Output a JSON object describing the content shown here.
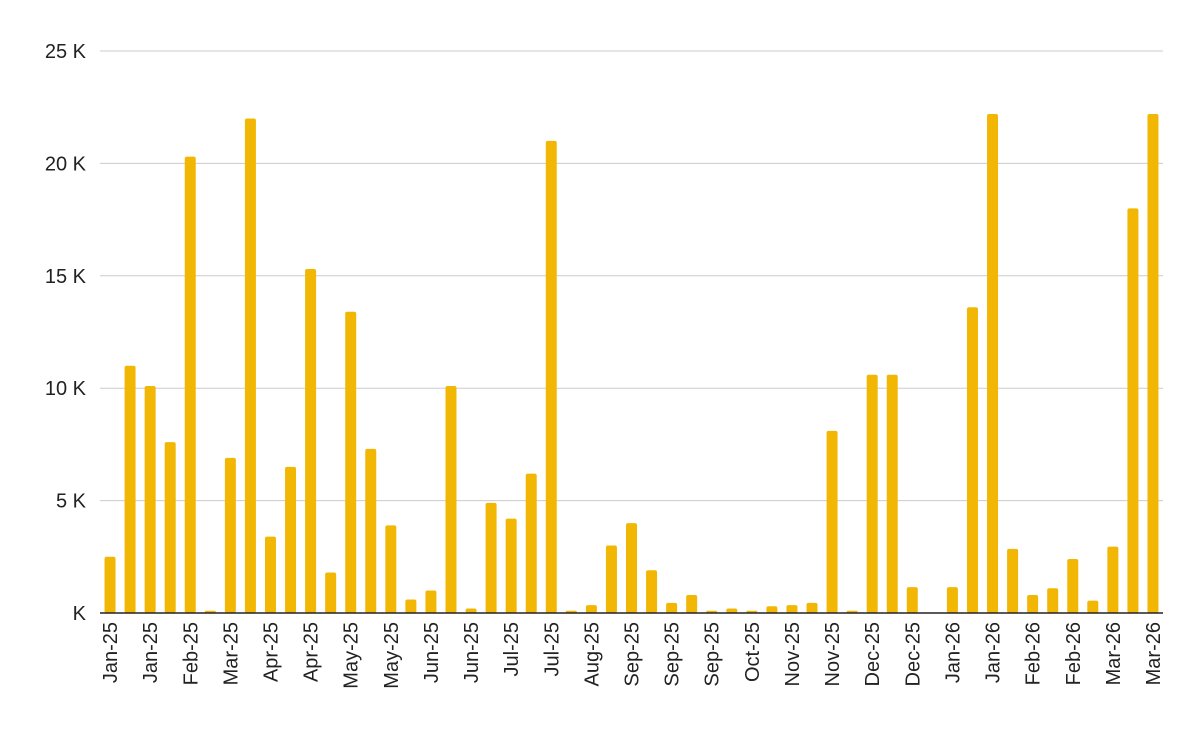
{
  "chart_data": {
    "type": "bar",
    "title": "",
    "xlabel": "",
    "ylabel": "",
    "ylim": [
      0,
      25000
    ],
    "yticks": [
      0,
      5000,
      10000,
      15000,
      20000,
      25000
    ],
    "ytick_labels": [
      "K",
      "5 K",
      "10 K",
      "15 K",
      "20 K",
      "25 K"
    ],
    "grid": true,
    "legend": "none",
    "bar_color": "#F2B705",
    "grid_color": "#cccccc",
    "axis_color": "#222222",
    "values": [
      2500,
      11000,
      10100,
      7600,
      20300,
      100,
      6900,
      22000,
      3400,
      6500,
      15300,
      1800,
      13400,
      7300,
      3900,
      600,
      1000,
      10100,
      200,
      4900,
      4200,
      6200,
      21000,
      100,
      350,
      3000,
      4000,
      1900,
      450,
      800,
      100,
      200,
      100,
      300,
      350,
      450,
      8100,
      100,
      10600,
      10600,
      1150,
      0,
      1150,
      13600,
      22200,
      2850,
      800,
      1100,
      2400,
      550,
      2950,
      18000,
      22200
    ],
    "x_labels": [
      {
        "index": 0,
        "text": "Jan-25"
      },
      {
        "index": 2,
        "text": "Jan-25"
      },
      {
        "index": 4,
        "text": "Feb-25"
      },
      {
        "index": 6,
        "text": "Mar-25"
      },
      {
        "index": 8,
        "text": "Apr-25"
      },
      {
        "index": 10,
        "text": "Apr-25"
      },
      {
        "index": 12,
        "text": "May-25"
      },
      {
        "index": 14,
        "text": "May-25"
      },
      {
        "index": 16,
        "text": "Jun-25"
      },
      {
        "index": 18,
        "text": "Jun-25"
      },
      {
        "index": 20,
        "text": "Jul-25"
      },
      {
        "index": 22,
        "text": "Jul-25"
      },
      {
        "index": 24,
        "text": "Aug-25"
      },
      {
        "index": 26,
        "text": "Sep-25"
      },
      {
        "index": 28,
        "text": "Sep-25"
      },
      {
        "index": 30,
        "text": "Sep-25"
      },
      {
        "index": 32,
        "text": "Oct-25"
      },
      {
        "index": 34,
        "text": "Nov-25"
      },
      {
        "index": 36,
        "text": "Nov-25"
      },
      {
        "index": 38,
        "text": "Dec-25"
      },
      {
        "index": 40,
        "text": "Dec-25"
      },
      {
        "index": 42,
        "text": "Jan-26"
      },
      {
        "index": 44,
        "text": "Jan-26"
      },
      {
        "index": 46,
        "text": "Feb-26"
      },
      {
        "index": 48,
        "text": "Feb-26"
      },
      {
        "index": 50,
        "text": "Mar-26"
      },
      {
        "index": 52,
        "text": "Mar-26"
      }
    ]
  }
}
